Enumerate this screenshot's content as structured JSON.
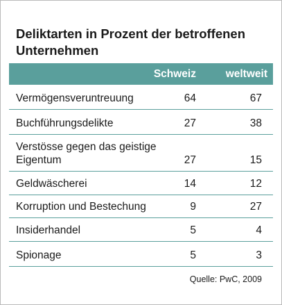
{
  "chart_data": {
    "type": "table",
    "title": "Deliktarten in Prozent der betroffenen Unternehmen",
    "columns": [
      "Schweiz",
      "weltweit"
    ],
    "rows": [
      {
        "label": "Vermögensveruntreuung",
        "values": [
          "64",
          "67"
        ]
      },
      {
        "label": "Buchführungsdelikte",
        "values": [
          "27",
          "38"
        ]
      },
      {
        "label": "Verstösse gegen das geistige Eigentum",
        "values": [
          "27",
          "15"
        ]
      },
      {
        "label": "Geldwäscherei",
        "values": [
          "14",
          "12"
        ]
      },
      {
        "label": "Korruption und Bestechung",
        "values": [
          "9",
          "27"
        ]
      },
      {
        "label": "Insiderhandel",
        "values": [
          "5",
          "4"
        ]
      },
      {
        "label": "Spionage",
        "values": [
          "5",
          "3"
        ]
      }
    ],
    "source": "Quelle: PwC, 2009"
  },
  "colors": {
    "header_bg": "#5a9f9c",
    "header_text": "#ffffff",
    "rule": "#5a9f9c",
    "text": "#1a1a1a"
  }
}
